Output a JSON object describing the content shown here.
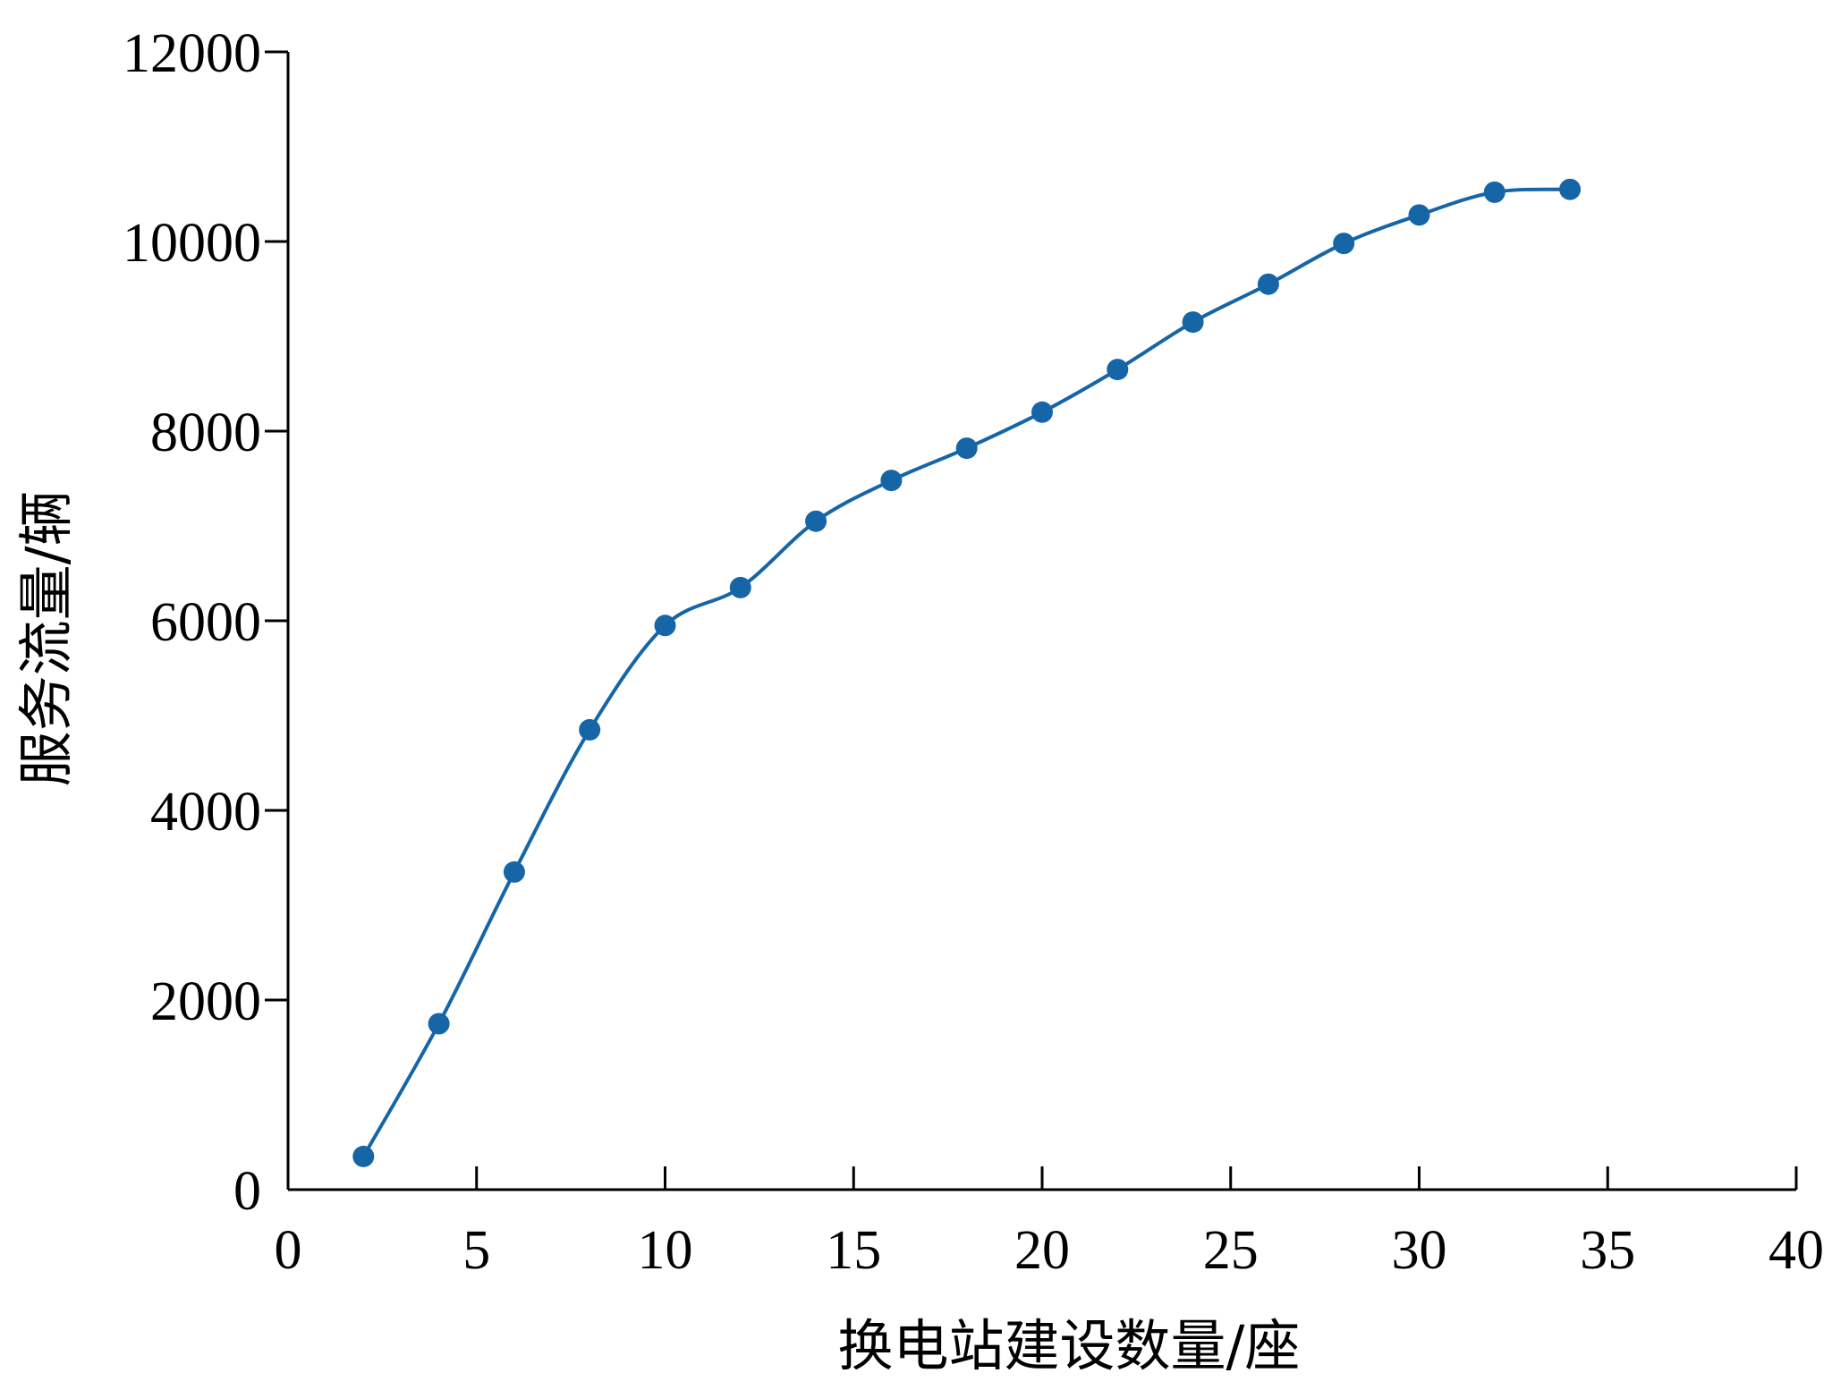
{
  "chart_data": {
    "type": "line",
    "title": "",
    "xlabel": "换电站建设数量/座",
    "ylabel": "服务流量/辆",
    "xlim": [
      0,
      40
    ],
    "ylim": [
      0,
      12000
    ],
    "xticks": [
      0,
      5,
      10,
      15,
      20,
      25,
      30,
      35,
      40
    ],
    "yticks": [
      0,
      2000,
      4000,
      6000,
      8000,
      10000,
      12000
    ],
    "grid": false,
    "legend": "none",
    "series": [
      {
        "color": "#1565a7",
        "marker": "circle",
        "smooth": true,
        "x": [
          2,
          4,
          6,
          8,
          10,
          12,
          14,
          16,
          18,
          20,
          22,
          24,
          26,
          28,
          30,
          32,
          34
        ],
        "y": [
          350,
          1750,
          3350,
          4850,
          5950,
          6350,
          7050,
          7480,
          7820,
          8200,
          8650,
          9150,
          9550,
          9980,
          10280,
          10520,
          10550
        ]
      }
    ]
  }
}
